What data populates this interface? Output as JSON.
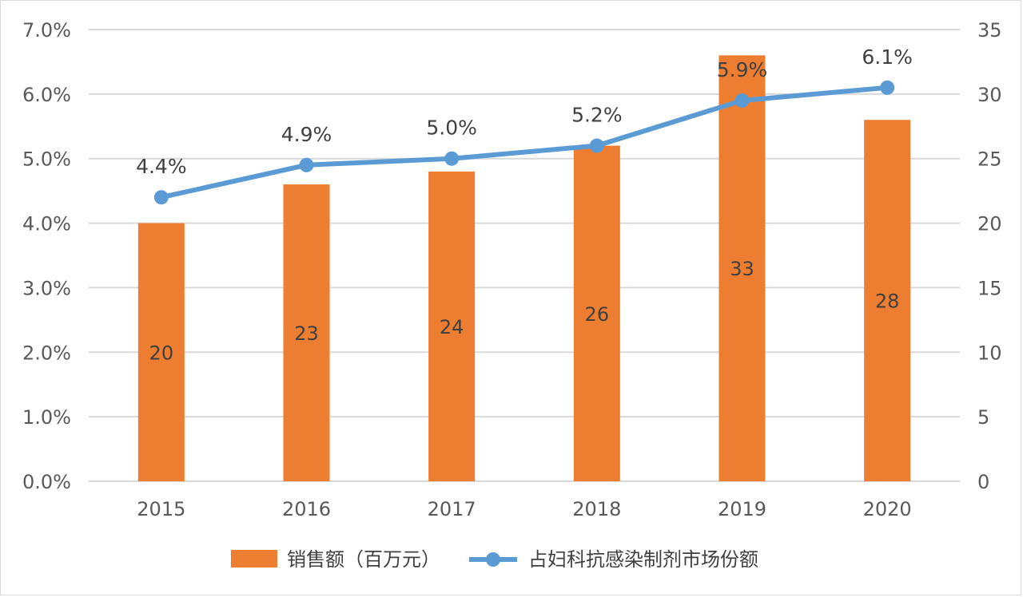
{
  "chart_data": {
    "type": "bar",
    "categories": [
      "2015",
      "2016",
      "2017",
      "2018",
      "2019",
      "2020"
    ],
    "series": [
      {
        "name": "销售额（百万元）",
        "chart_type": "bar",
        "axis": "right",
        "values": [
          20,
          23,
          24,
          26,
          33,
          28
        ],
        "labels": [
          "20",
          "23",
          "24",
          "26",
          "33",
          "28"
        ],
        "color": "#ED7D31"
      },
      {
        "name": "占妇科抗感染制剂市场份额",
        "chart_type": "line",
        "axis": "left",
        "values": [
          4.4,
          4.9,
          5.0,
          5.2,
          5.9,
          6.1
        ],
        "labels": [
          "4.4%",
          "4.9%",
          "5.0%",
          "5.2%",
          "5.9%",
          "6.1%"
        ],
        "color": "#5B9BD5"
      }
    ],
    "y_left": {
      "ylim": [
        0,
        7
      ],
      "ticks": [
        "0.0%",
        "1.0%",
        "2.0%",
        "3.0%",
        "4.0%",
        "5.0%",
        "6.0%",
        "7.0%"
      ]
    },
    "y_right": {
      "ylim": [
        0,
        35
      ],
      "ticks": [
        "0",
        "5",
        "10",
        "15",
        "20",
        "25",
        "30",
        "35"
      ]
    },
    "grid": true,
    "legend_position": "bottom",
    "gridline_color": "#d9d9d9",
    "tick_color": "#595959"
  }
}
